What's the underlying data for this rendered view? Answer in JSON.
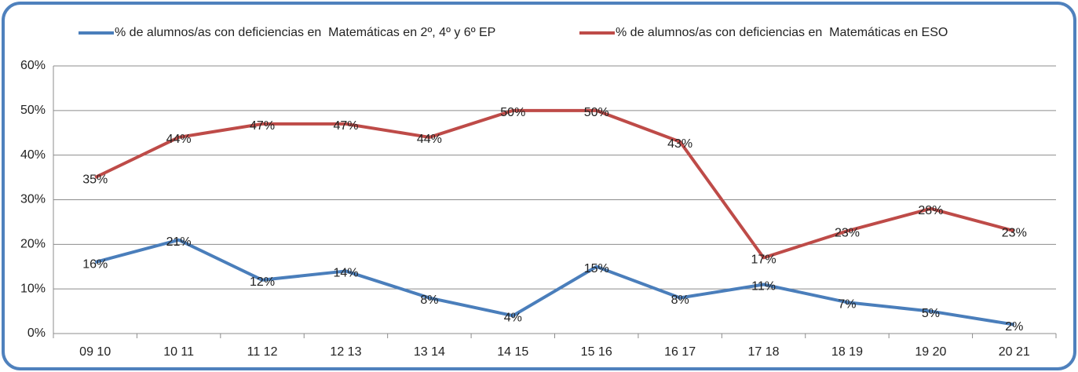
{
  "chart_data": {
    "type": "line",
    "categories": [
      "09 10",
      "10 11",
      "11 12",
      "12 13",
      "13 14",
      "14 15",
      "15 16",
      "16 17",
      "17 18",
      "18 19",
      "19 20",
      "20 21"
    ],
    "series": [
      {
        "name": "% de alumnos/as con deficiencias en  Matemáticas en 2º, 4º y 6º EP",
        "color": "#4a7ebb",
        "values": [
          16,
          21,
          12,
          14,
          8,
          4,
          15,
          8,
          11,
          7,
          5,
          2
        ],
        "value_labels": [
          "16%",
          "21%",
          "12%",
          "14%",
          "8%",
          "4%",
          "15%",
          "8%",
          "11%",
          "7%",
          "5%",
          "2%"
        ]
      },
      {
        "name": "% de alumnos/as con deficiencias en  Matemáticas en ESO",
        "color": "#be4b48",
        "values": [
          35,
          44,
          47,
          47,
          44,
          50,
          50,
          43,
          17,
          23,
          28,
          23
        ],
        "value_labels": [
          "35%",
          "44%",
          "47%",
          "47%",
          "44%",
          "50%",
          "50%",
          "43%",
          "17%",
          "23%",
          "28%",
          "23%"
        ]
      }
    ],
    "ylim": [
      0,
      60
    ],
    "yticks": [
      {
        "value": 0,
        "label": "0%"
      },
      {
        "value": 10,
        "label": "10%"
      },
      {
        "value": 20,
        "label": "20%"
      },
      {
        "value": 30,
        "label": "30%"
      },
      {
        "value": 40,
        "label": "40%"
      },
      {
        "value": 50,
        "label": "50%"
      },
      {
        "value": 60,
        "label": "60%"
      }
    ],
    "grid": true,
    "legend": "top"
  }
}
